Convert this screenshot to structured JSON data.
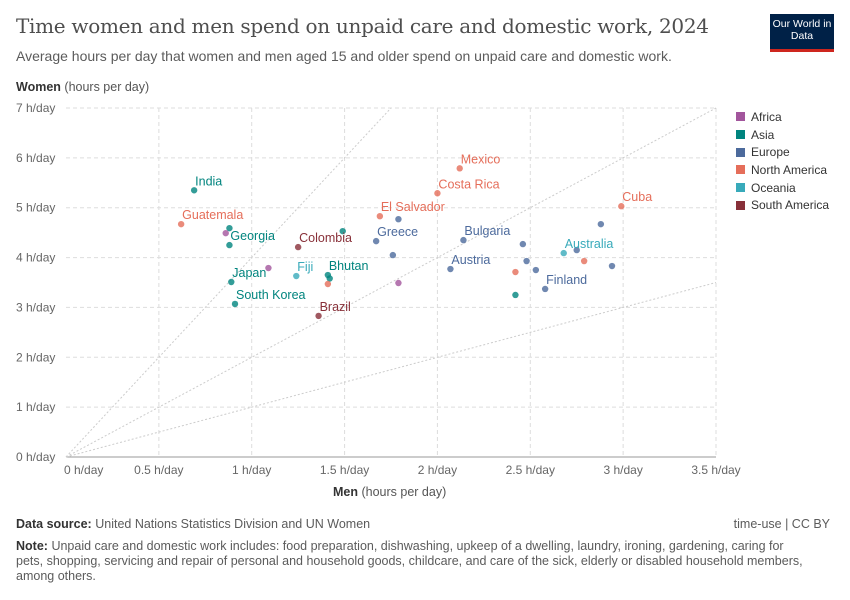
{
  "header": {
    "title": "Time women and men spend on unpaid care and domestic work, 2024",
    "subtitle": "Average hours per day that women and men aged 15 and older spend on unpaid care and domestic work.",
    "logo": "Our World in Data"
  },
  "footer": {
    "source_label": "Data source:",
    "source": "United Nations Statistics Division and UN Women",
    "license": "time-use | CC BY",
    "note_label": "Note:",
    "note": "Unpaid care and domestic work includes: food preparation, dishwashing, upkeep of a dwelling, laundry, ironing, gardening, caring for pets, shopping, servicing and repair of personal and household goods, childcare, and care of the sick, elderly or disabled household members, among others."
  },
  "chart_data": {
    "type": "scatter",
    "title": "Time women and men spend on unpaid care and domestic work, 2024",
    "xlabel_bold": "Men",
    "xlabel_unit": "(hours per day)",
    "ylabel_bold": "Women",
    "ylabel_unit": "(hours per day)",
    "xlim": [
      0,
      3.5
    ],
    "ylim": [
      0,
      7
    ],
    "xticks": [
      {
        "v": 0,
        "l": "0 h/day"
      },
      {
        "v": 0.5,
        "l": "0.5 h/day"
      },
      {
        "v": 1,
        "l": "1 h/day"
      },
      {
        "v": 1.5,
        "l": "1.5 h/day"
      },
      {
        "v": 2,
        "l": "2 h/day"
      },
      {
        "v": 2.5,
        "l": "2.5 h/day"
      },
      {
        "v": 3,
        "l": "3 h/day"
      },
      {
        "v": 3.5,
        "l": "3.5 h/day"
      }
    ],
    "yticks": [
      {
        "v": 0,
        "l": "0 h/day"
      },
      {
        "v": 1,
        "l": "1 h/day"
      },
      {
        "v": 2,
        "l": "2 h/day"
      },
      {
        "v": 3,
        "l": "3 h/day"
      },
      {
        "v": 4,
        "l": "4 h/day"
      },
      {
        "v": 5,
        "l": "5 h/day"
      },
      {
        "v": 6,
        "l": "6 h/day"
      },
      {
        "v": 7,
        "l": "7 h/day"
      }
    ],
    "reference_ratios": [
      4,
      2,
      1
    ],
    "legend": [
      {
        "name": "Africa",
        "color": "#a2559c"
      },
      {
        "name": "Asia",
        "color": "#00847e"
      },
      {
        "name": "Europe",
        "color": "#4c6a9c"
      },
      {
        "name": "North America",
        "color": "#e56e5a"
      },
      {
        "name": "Oceania",
        "color": "#38aaba"
      },
      {
        "name": "South America",
        "color": "#883039"
      }
    ],
    "points": [
      {
        "label": "India",
        "region": "Asia",
        "x": 0.69,
        "y": 5.35
      },
      {
        "label": "Guatemala",
        "region": "North America",
        "x": 0.62,
        "y": 4.67
      },
      {
        "label": "",
        "region": "Asia",
        "x": 0.88,
        "y": 4.59
      },
      {
        "label": "",
        "region": "Africa",
        "x": 0.86,
        "y": 4.49
      },
      {
        "label": "Georgia",
        "region": "Asia",
        "x": 0.88,
        "y": 4.25
      },
      {
        "label": "Colombia",
        "region": "South America",
        "x": 1.25,
        "y": 4.21
      },
      {
        "label": "",
        "region": "Asia",
        "x": 1.49,
        "y": 4.53
      },
      {
        "label": "El Salvador",
        "region": "North America",
        "x": 1.69,
        "y": 4.83
      },
      {
        "label": "",
        "region": "Europe",
        "x": 1.79,
        "y": 4.77
      },
      {
        "label": "Greece",
        "region": "Europe",
        "x": 1.67,
        "y": 4.33
      },
      {
        "label": "",
        "region": "Europe",
        "x": 1.76,
        "y": 4.05
      },
      {
        "label": "Mexico",
        "region": "North America",
        "x": 2.12,
        "y": 5.79
      },
      {
        "label": "Costa Rica",
        "region": "North America",
        "x": 2.0,
        "y": 5.29
      },
      {
        "label": "Bulgaria",
        "region": "Europe",
        "x": 2.14,
        "y": 4.35
      },
      {
        "label": "Austria",
        "region": "Europe",
        "x": 2.07,
        "y": 3.77
      },
      {
        "label": "",
        "region": "Europe",
        "x": 2.46,
        "y": 4.27
      },
      {
        "label": "",
        "region": "Europe",
        "x": 2.48,
        "y": 3.93
      },
      {
        "label": "",
        "region": "Europe",
        "x": 2.53,
        "y": 3.75
      },
      {
        "label": "",
        "region": "North America",
        "x": 2.42,
        "y": 3.71
      },
      {
        "label": "",
        "region": "Asia",
        "x": 2.42,
        "y": 3.25
      },
      {
        "label": "Finland",
        "region": "Europe",
        "x": 2.58,
        "y": 3.37
      },
      {
        "label": "",
        "region": "Europe",
        "x": 2.75,
        "y": 4.15
      },
      {
        "label": "Australia",
        "region": "Oceania",
        "x": 2.68,
        "y": 4.09
      },
      {
        "label": "",
        "region": "North America",
        "x": 2.79,
        "y": 3.93
      },
      {
        "label": "",
        "region": "Europe",
        "x": 2.94,
        "y": 3.83
      },
      {
        "label": "",
        "region": "Europe",
        "x": 2.88,
        "y": 4.67
      },
      {
        "label": "Cuba",
        "region": "North America",
        "x": 2.99,
        "y": 5.03
      },
      {
        "label": "",
        "region": "Africa",
        "x": 1.09,
        "y": 3.79
      },
      {
        "label": "Japan",
        "region": "Asia",
        "x": 0.89,
        "y": 3.51
      },
      {
        "label": "Fiji",
        "region": "Oceania",
        "x": 1.24,
        "y": 3.63
      },
      {
        "label": "Bhutan",
        "region": "Asia",
        "x": 1.41,
        "y": 3.65
      },
      {
        "label": "",
        "region": "Asia",
        "x": 1.42,
        "y": 3.58
      },
      {
        "label": "",
        "region": "North America",
        "x": 1.41,
        "y": 3.47
      },
      {
        "label": "",
        "region": "Africa",
        "x": 1.79,
        "y": 3.49
      },
      {
        "label": "South Korea",
        "region": "Asia",
        "x": 0.91,
        "y": 3.07
      },
      {
        "label": "Brazil",
        "region": "South America",
        "x": 1.36,
        "y": 2.83
      }
    ]
  }
}
